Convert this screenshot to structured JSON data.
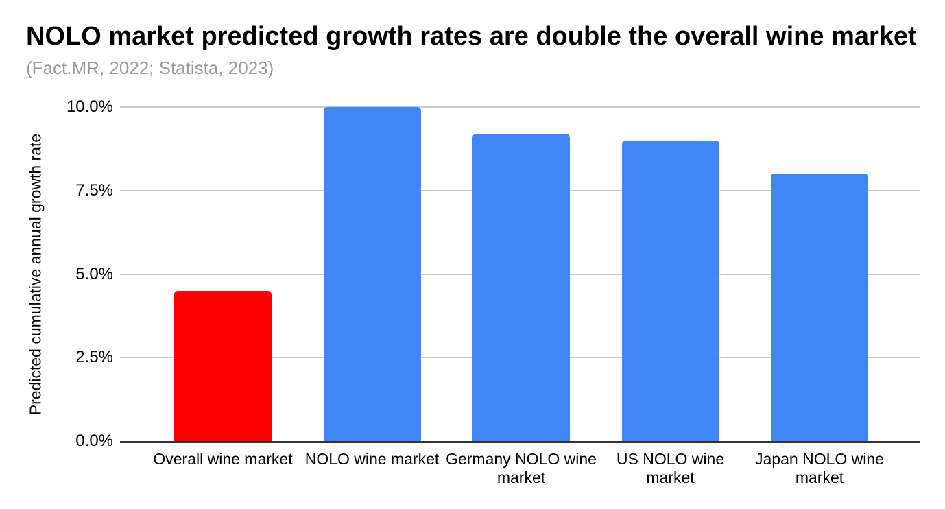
{
  "header": {
    "title": "NOLO market predicted growth rates are double the overall wine market",
    "subtitle": "(Fact.MR, 2022; Statista, 2023)"
  },
  "chart_data": {
    "type": "bar",
    "title": "NOLO market predicted growth rates are double the overall wine market",
    "subtitle": "(Fact.MR, 2022; Statista, 2023)",
    "categories": [
      "Overall wine market",
      "NOLO wine market",
      "Germany NOLO wine market",
      "US NOLO wine market",
      "Japan NOLO wine market"
    ],
    "values": [
      4.5,
      10.0,
      9.2,
      9.0,
      8.0
    ],
    "value_unit": "%",
    "bar_colors": [
      "#ff0000",
      "#4285f4",
      "#4285f4",
      "#4285f4",
      "#4285f4"
    ],
    "xlabel": "",
    "ylabel": "Predicted cumulative annual growth rate",
    "ylim": [
      0,
      10
    ],
    "yticks": [
      {
        "value": 0,
        "label": "0.0%"
      },
      {
        "value": 2.5,
        "label": "2.5%"
      },
      {
        "value": 5,
        "label": "5.0%"
      },
      {
        "value": 7.5,
        "label": "7.5%"
      },
      {
        "value": 10,
        "label": "10.0%"
      }
    ],
    "grid": true,
    "legend_position": "none"
  },
  "colors": {
    "accent_blue": "#4285f4",
    "accent_red": "#ff0000",
    "gridline": "#cccccc",
    "axis_line": "#333333",
    "subtitle_gray": "#9a9a9a",
    "text": "#000000",
    "background": "#ffffff"
  }
}
